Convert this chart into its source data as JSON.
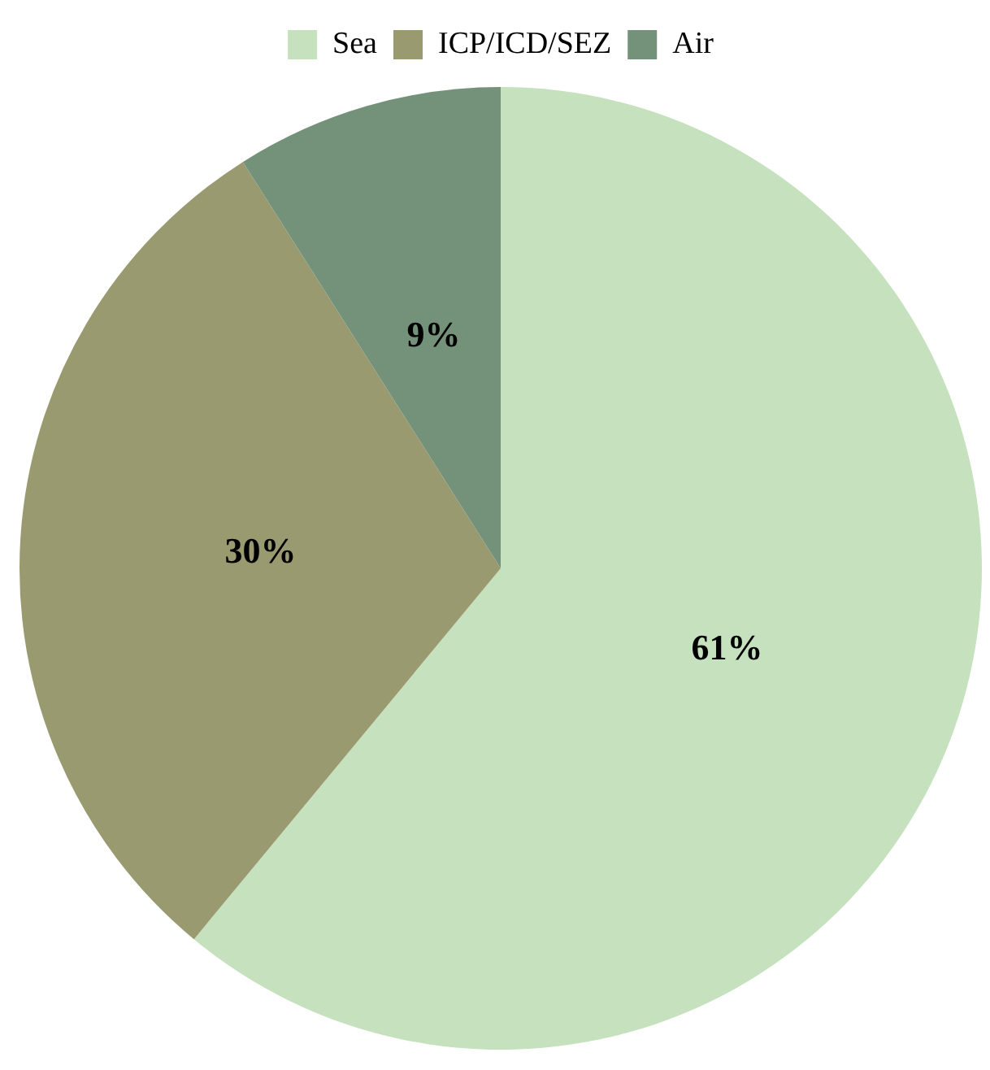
{
  "chart_data": {
    "type": "pie",
    "categories": [
      "Sea",
      "ICP/ICD/SEZ",
      "Air"
    ],
    "values": [
      61,
      30,
      9
    ],
    "colors": [
      "#c5e1bd",
      "#9a9a70",
      "#74927a"
    ],
    "value_labels": [
      "61%",
      "30%",
      "9%"
    ],
    "legend": "top"
  }
}
